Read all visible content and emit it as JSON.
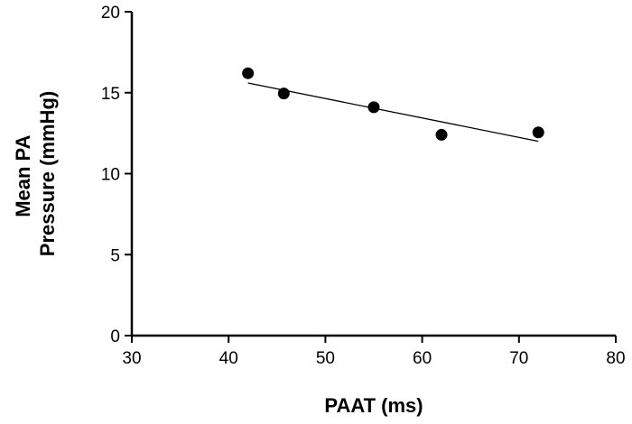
{
  "chart_data": {
    "type": "scatter",
    "title": "",
    "xlabel": "PAAT (ms)",
    "ylabel_lines": [
      "Mean PA",
      "Pressure (mmHg)"
    ],
    "xlim": [
      30,
      80
    ],
    "ylim": [
      0,
      20
    ],
    "xticks": [
      30,
      40,
      50,
      60,
      70,
      80
    ],
    "yticks": [
      0,
      5,
      10,
      15,
      20
    ],
    "grid": false,
    "legend": "none",
    "series": [
      {
        "points": [
          {
            "x": 42,
            "y": 16.2
          },
          {
            "x": 45.7,
            "y": 14.95
          },
          {
            "x": 55,
            "y": 14.1
          },
          {
            "x": 62,
            "y": 12.4
          },
          {
            "x": 72,
            "y": 12.55
          }
        ]
      }
    ],
    "trendline": {
      "type": "linear",
      "from": {
        "x": 42,
        "y": 15.6
      },
      "to": {
        "x": 72,
        "y": 12.0
      }
    },
    "colors": {
      "marker": "#000000",
      "axis": "#000000",
      "trendline": "#000000"
    }
  }
}
